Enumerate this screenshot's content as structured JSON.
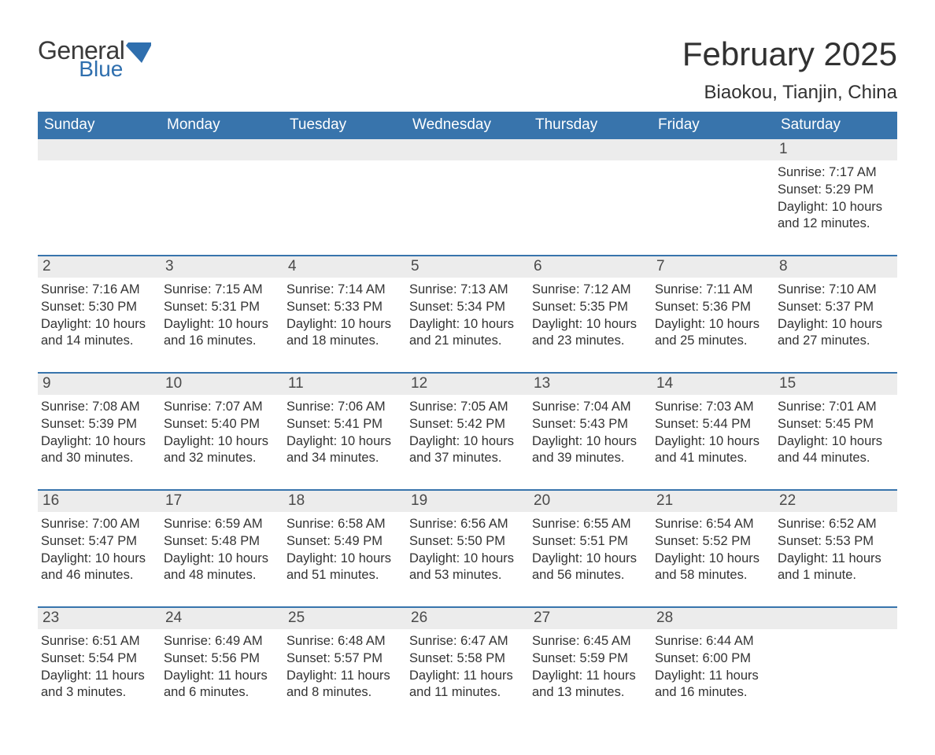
{
  "brand": {
    "word1": "General",
    "word2": "Blue",
    "color_gray": "#3a3a3a",
    "color_blue": "#2f6fae"
  },
  "title": "February 2025",
  "location": "Biaokou, Tianjin, China",
  "colors": {
    "header_bg": "#3874ac",
    "header_text": "#ffffff",
    "band_bg": "#ececec",
    "rule": "#3874ac",
    "text": "#333333",
    "page_bg": "#ffffff"
  },
  "dow": [
    "Sunday",
    "Monday",
    "Tuesday",
    "Wednesday",
    "Thursday",
    "Friday",
    "Saturday"
  ],
  "weeks": [
    [
      null,
      null,
      null,
      null,
      null,
      null,
      {
        "n": "1",
        "sr": "Sunrise: 7:17 AM",
        "ss": "Sunset: 5:29 PM",
        "dl": "Daylight: 10 hours and 12 minutes."
      }
    ],
    [
      {
        "n": "2",
        "sr": "Sunrise: 7:16 AM",
        "ss": "Sunset: 5:30 PM",
        "dl": "Daylight: 10 hours and 14 minutes."
      },
      {
        "n": "3",
        "sr": "Sunrise: 7:15 AM",
        "ss": "Sunset: 5:31 PM",
        "dl": "Daylight: 10 hours and 16 minutes."
      },
      {
        "n": "4",
        "sr": "Sunrise: 7:14 AM",
        "ss": "Sunset: 5:33 PM",
        "dl": "Daylight: 10 hours and 18 minutes."
      },
      {
        "n": "5",
        "sr": "Sunrise: 7:13 AM",
        "ss": "Sunset: 5:34 PM",
        "dl": "Daylight: 10 hours and 21 minutes."
      },
      {
        "n": "6",
        "sr": "Sunrise: 7:12 AM",
        "ss": "Sunset: 5:35 PM",
        "dl": "Daylight: 10 hours and 23 minutes."
      },
      {
        "n": "7",
        "sr": "Sunrise: 7:11 AM",
        "ss": "Sunset: 5:36 PM",
        "dl": "Daylight: 10 hours and 25 minutes."
      },
      {
        "n": "8",
        "sr": "Sunrise: 7:10 AM",
        "ss": "Sunset: 5:37 PM",
        "dl": "Daylight: 10 hours and 27 minutes."
      }
    ],
    [
      {
        "n": "9",
        "sr": "Sunrise: 7:08 AM",
        "ss": "Sunset: 5:39 PM",
        "dl": "Daylight: 10 hours and 30 minutes."
      },
      {
        "n": "10",
        "sr": "Sunrise: 7:07 AM",
        "ss": "Sunset: 5:40 PM",
        "dl": "Daylight: 10 hours and 32 minutes."
      },
      {
        "n": "11",
        "sr": "Sunrise: 7:06 AM",
        "ss": "Sunset: 5:41 PM",
        "dl": "Daylight: 10 hours and 34 minutes."
      },
      {
        "n": "12",
        "sr": "Sunrise: 7:05 AM",
        "ss": "Sunset: 5:42 PM",
        "dl": "Daylight: 10 hours and 37 minutes."
      },
      {
        "n": "13",
        "sr": "Sunrise: 7:04 AM",
        "ss": "Sunset: 5:43 PM",
        "dl": "Daylight: 10 hours and 39 minutes."
      },
      {
        "n": "14",
        "sr": "Sunrise: 7:03 AM",
        "ss": "Sunset: 5:44 PM",
        "dl": "Daylight: 10 hours and 41 minutes."
      },
      {
        "n": "15",
        "sr": "Sunrise: 7:01 AM",
        "ss": "Sunset: 5:45 PM",
        "dl": "Daylight: 10 hours and 44 minutes."
      }
    ],
    [
      {
        "n": "16",
        "sr": "Sunrise: 7:00 AM",
        "ss": "Sunset: 5:47 PM",
        "dl": "Daylight: 10 hours and 46 minutes."
      },
      {
        "n": "17",
        "sr": "Sunrise: 6:59 AM",
        "ss": "Sunset: 5:48 PM",
        "dl": "Daylight: 10 hours and 48 minutes."
      },
      {
        "n": "18",
        "sr": "Sunrise: 6:58 AM",
        "ss": "Sunset: 5:49 PM",
        "dl": "Daylight: 10 hours and 51 minutes."
      },
      {
        "n": "19",
        "sr": "Sunrise: 6:56 AM",
        "ss": "Sunset: 5:50 PM",
        "dl": "Daylight: 10 hours and 53 minutes."
      },
      {
        "n": "20",
        "sr": "Sunrise: 6:55 AM",
        "ss": "Sunset: 5:51 PM",
        "dl": "Daylight: 10 hours and 56 minutes."
      },
      {
        "n": "21",
        "sr": "Sunrise: 6:54 AM",
        "ss": "Sunset: 5:52 PM",
        "dl": "Daylight: 10 hours and 58 minutes."
      },
      {
        "n": "22",
        "sr": "Sunrise: 6:52 AM",
        "ss": "Sunset: 5:53 PM",
        "dl": "Daylight: 11 hours and 1 minute."
      }
    ],
    [
      {
        "n": "23",
        "sr": "Sunrise: 6:51 AM",
        "ss": "Sunset: 5:54 PM",
        "dl": "Daylight: 11 hours and 3 minutes."
      },
      {
        "n": "24",
        "sr": "Sunrise: 6:49 AM",
        "ss": "Sunset: 5:56 PM",
        "dl": "Daylight: 11 hours and 6 minutes."
      },
      {
        "n": "25",
        "sr": "Sunrise: 6:48 AM",
        "ss": "Sunset: 5:57 PM",
        "dl": "Daylight: 11 hours and 8 minutes."
      },
      {
        "n": "26",
        "sr": "Sunrise: 6:47 AM",
        "ss": "Sunset: 5:58 PM",
        "dl": "Daylight: 11 hours and 11 minutes."
      },
      {
        "n": "27",
        "sr": "Sunrise: 6:45 AM",
        "ss": "Sunset: 5:59 PM",
        "dl": "Daylight: 11 hours and 13 minutes."
      },
      {
        "n": "28",
        "sr": "Sunrise: 6:44 AM",
        "ss": "Sunset: 6:00 PM",
        "dl": "Daylight: 11 hours and 16 minutes."
      },
      null
    ]
  ]
}
